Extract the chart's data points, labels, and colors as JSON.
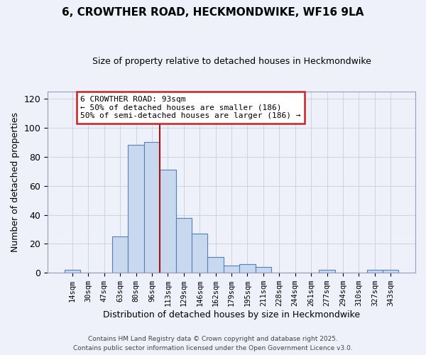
{
  "title": "6, CROWTHER ROAD, HECKMONDWIKE, WF16 9LA",
  "subtitle": "Size of property relative to detached houses in Heckmondwike",
  "xlabel": "Distribution of detached houses by size in Heckmondwike",
  "ylabel": "Number of detached properties",
  "bar_labels": [
    "14sqm",
    "30sqm",
    "47sqm",
    "63sqm",
    "80sqm",
    "96sqm",
    "113sqm",
    "129sqm",
    "146sqm",
    "162sqm",
    "179sqm",
    "195sqm",
    "211sqm",
    "228sqm",
    "244sqm",
    "261sqm",
    "277sqm",
    "294sqm",
    "310sqm",
    "327sqm",
    "343sqm"
  ],
  "bar_values": [
    2,
    0,
    0,
    25,
    88,
    90,
    71,
    38,
    27,
    11,
    5,
    6,
    4,
    0,
    0,
    0,
    2,
    0,
    0,
    2,
    2
  ],
  "bar_color": "#c8d8ef",
  "bar_edge_color": "#5580bb",
  "bar_width": 1.0,
  "ylim": [
    0,
    125
  ],
  "yticks": [
    0,
    20,
    40,
    60,
    80,
    100,
    120
  ],
  "vline_x": 5.5,
  "vline_color": "#aa1111",
  "annotation_text": "6 CROWTHER ROAD: 93sqm\n← 50% of detached houses are smaller (186)\n50% of semi-detached houses are larger (186) →",
  "annotation_box_color": "#ffffff",
  "annotation_box_edge": "#cc2222",
  "footnote1": "Contains HM Land Registry data © Crown copyright and database right 2025.",
  "footnote2": "Contains public sector information licensed under the Open Government Licence v3.0.",
  "bg_color": "#eef1fa",
  "grid_color": "#c8cfe0"
}
